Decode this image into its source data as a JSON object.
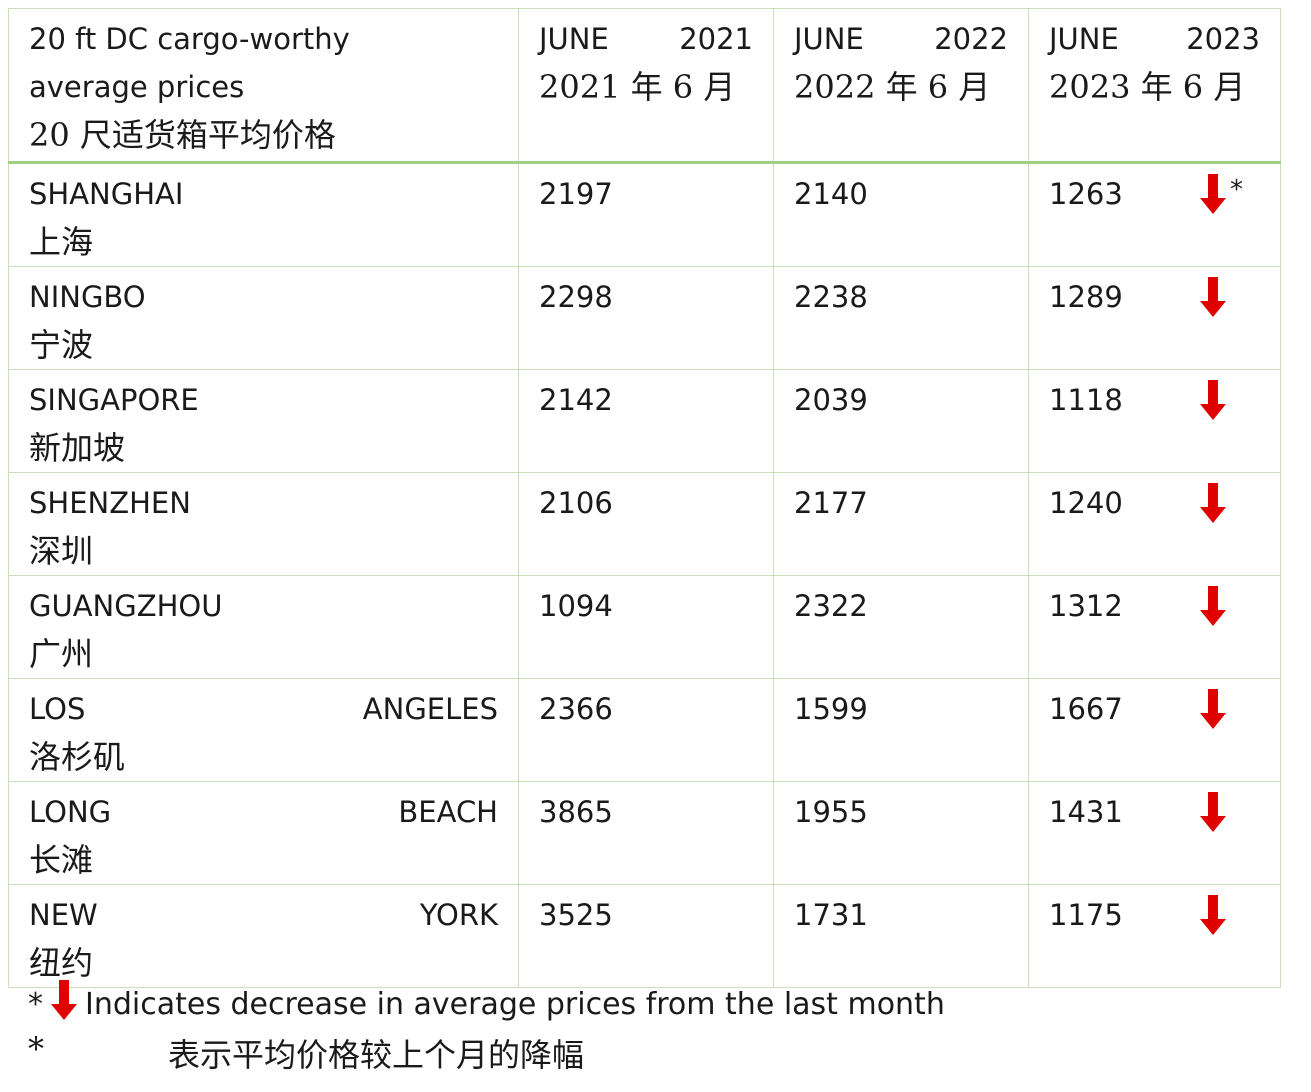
{
  "header": {
    "title_en_1": "20 ft DC cargo-worthy",
    "title_en_2": "average prices",
    "title_zh": "20 尺适货箱平均价格",
    "columns": [
      {
        "month": "JUNE",
        "year": "2021",
        "zh": "2021 年 6 月"
      },
      {
        "month": "JUNE",
        "year": "2022",
        "zh": "2022 年 6 月"
      },
      {
        "month": "JUNE",
        "year": "2023",
        "zh": "2023 年 6 月"
      }
    ]
  },
  "rows": [
    {
      "name_parts": [
        "SHANGHAI"
      ],
      "zh": "上海",
      "v2021": "2197",
      "v2022": "2140",
      "v2023": "1263",
      "trend": "down",
      "star": "*"
    },
    {
      "name_parts": [
        "NINGBO"
      ],
      "zh": "宁波",
      "v2021": "2298",
      "v2022": "2238",
      "v2023": "1289",
      "trend": "down"
    },
    {
      "name_parts": [
        "SINGAPORE"
      ],
      "zh": "新加坡",
      "v2021": "2142",
      "v2022": "2039",
      "v2023": "1118",
      "trend": "down"
    },
    {
      "name_parts": [
        "SHENZHEN"
      ],
      "zh": "深圳",
      "v2021": "2106",
      "v2022": "2177",
      "v2023": "1240",
      "trend": "down"
    },
    {
      "name_parts": [
        "GUANGZHOU"
      ],
      "zh": "广州",
      "v2021": "1094",
      "v2022": "2322",
      "v2023": "1312",
      "trend": "down"
    },
    {
      "name_parts": [
        "LOS",
        "ANGELES"
      ],
      "zh": "洛杉矶",
      "v2021": "2366",
      "v2022": "1599",
      "v2023": "1667",
      "trend": "down"
    },
    {
      "name_parts": [
        "LONG",
        "BEACH"
      ],
      "zh": "长滩",
      "v2021": "3865",
      "v2022": "1955",
      "v2023": "1431",
      "trend": "down"
    },
    {
      "name_parts": [
        "NEW",
        "YORK"
      ],
      "zh": "纽约",
      "v2021": "3525",
      "v2022": "1731",
      "v2023": "1175",
      "trend": "down"
    }
  ],
  "footer": {
    "star": "*",
    "note_en": "Indicates decrease in average prices from the last month",
    "note_zh": "表示平均价格较上个月的降幅"
  },
  "colors": {
    "arrow": "#e00000",
    "border": "#c9e0b8",
    "header_rule": "#9fcf86"
  }
}
